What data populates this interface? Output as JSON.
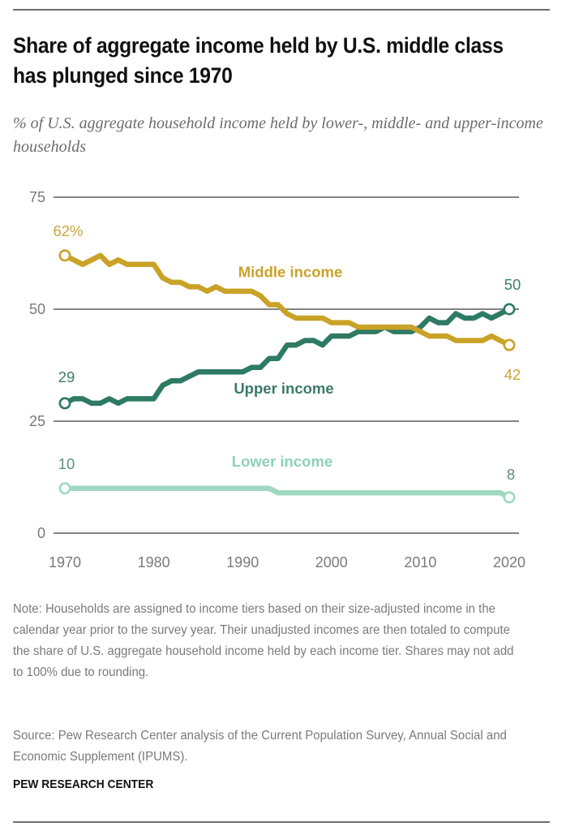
{
  "header": {
    "title": "Share of aggregate income held by U.S. middle class has plunged since 1970",
    "subtitle": "% of U.S. aggregate household income held by lower-, middle- and upper-income households"
  },
  "footer": {
    "note": "Note: Households are assigned to income tiers based on their size-adjusted income in the calendar year prior to the survey year. Their unadjusted incomes are then totaled to compute the share of U.S. aggregate household income held by each income tier. Shares may not add to 100% due to rounding.",
    "source": "Source: Pew Research Center analysis of the Current Population Survey, Annual Social and Economic Supplement (IPUMS).",
    "brand": "PEW RESEARCH CENTER"
  },
  "chart_data": {
    "type": "line",
    "title": "Share of aggregate income held by U.S. middle class has plunged since 1970",
    "subtitle": "% of U.S. aggregate household income held by lower-, middle- and upper-income households",
    "xlabel": "",
    "ylabel": "",
    "xlim": [
      1970,
      2020
    ],
    "ylim": [
      0,
      75
    ],
    "x_ticks": [
      "1970",
      "1980",
      "1990",
      "2000",
      "2010",
      "2020"
    ],
    "y_ticks": [
      "0",
      "25",
      "50",
      "75"
    ],
    "grid": true,
    "legend": "inline labels",
    "x": [
      1970,
      1971,
      1972,
      1973,
      1974,
      1975,
      1976,
      1977,
      1978,
      1979,
      1980,
      1981,
      1982,
      1983,
      1984,
      1985,
      1986,
      1987,
      1988,
      1989,
      1990,
      1991,
      1992,
      1993,
      1994,
      1995,
      1996,
      1997,
      1998,
      1999,
      2000,
      2001,
      2002,
      2003,
      2004,
      2005,
      2006,
      2007,
      2008,
      2009,
      2010,
      2011,
      2012,
      2013,
      2014,
      2015,
      2016,
      2017,
      2018,
      2019,
      2020
    ],
    "series": [
      {
        "name": "Middle income",
        "color": "#c9a227",
        "start_label": "62%",
        "end_label": "42",
        "values": [
          62,
          61,
          60,
          61,
          62,
          60,
          61,
          60,
          60,
          60,
          60,
          57,
          56,
          56,
          55,
          55,
          54,
          55,
          54,
          54,
          54,
          54,
          53,
          51,
          51,
          49,
          48,
          48,
          48,
          48,
          47,
          47,
          47,
          46,
          46,
          46,
          46,
          46,
          46,
          46,
          45,
          44,
          44,
          44,
          43,
          43,
          43,
          43,
          44,
          43,
          42
        ]
      },
      {
        "name": "Upper income",
        "color": "#2e7a64",
        "start_label": "29",
        "end_label": "50",
        "values": [
          29,
          30,
          30,
          29,
          29,
          30,
          29,
          30,
          30,
          30,
          30,
          33,
          34,
          34,
          35,
          36,
          36,
          36,
          36,
          36,
          36,
          37,
          37,
          39,
          39,
          42,
          42,
          43,
          43,
          42,
          44,
          44,
          44,
          45,
          45,
          45,
          46,
          45,
          45,
          45,
          46,
          48,
          47,
          47,
          49,
          48,
          48,
          49,
          48,
          49,
          50
        ]
      },
      {
        "name": "Lower income",
        "color": "#9fd8c0",
        "start_label": "10",
        "end_label": "8",
        "values": [
          10,
          10,
          10,
          10,
          10,
          10,
          10,
          10,
          10,
          10,
          10,
          10,
          10,
          10,
          10,
          10,
          10,
          10,
          10,
          10,
          10,
          10,
          10,
          10,
          9,
          9,
          9,
          9,
          9,
          9,
          9,
          9,
          9,
          9,
          9,
          9,
          9,
          9,
          9,
          9,
          9,
          9,
          9,
          9,
          9,
          9,
          9,
          9,
          9,
          9,
          8
        ]
      }
    ]
  }
}
